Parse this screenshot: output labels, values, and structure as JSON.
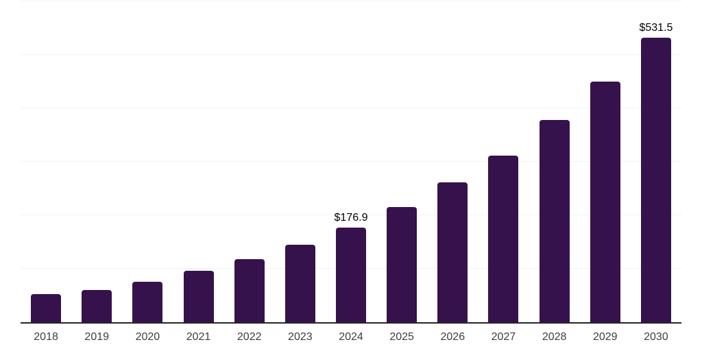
{
  "chart_data": {
    "type": "bar",
    "title": "",
    "xlabel": "",
    "ylabel": "",
    "categories": [
      "2018",
      "2019",
      "2020",
      "2021",
      "2022",
      "2023",
      "2024",
      "2025",
      "2026",
      "2027",
      "2028",
      "2029",
      "2030"
    ],
    "values": [
      52,
      60,
      76,
      96,
      118,
      145,
      176.9,
      215,
      261,
      312,
      378,
      450,
      531.5
    ],
    "value_labels": [
      "",
      "",
      "",
      "",
      "",
      "",
      "$176.9",
      "",
      "",
      "",
      "",
      "",
      "$531.5"
    ],
    "ylim": [
      0,
      600
    ],
    "gridline_step": 100,
    "grid": true,
    "y_tick_labels_visible": false,
    "legend_position": "none",
    "colors": {
      "background": "#ffffff",
      "bar": "#35124C",
      "axis_line": "#262626",
      "gridline": "#f2f2f2",
      "tick_label": "#3d3d3d",
      "data_label": "#000000"
    }
  }
}
